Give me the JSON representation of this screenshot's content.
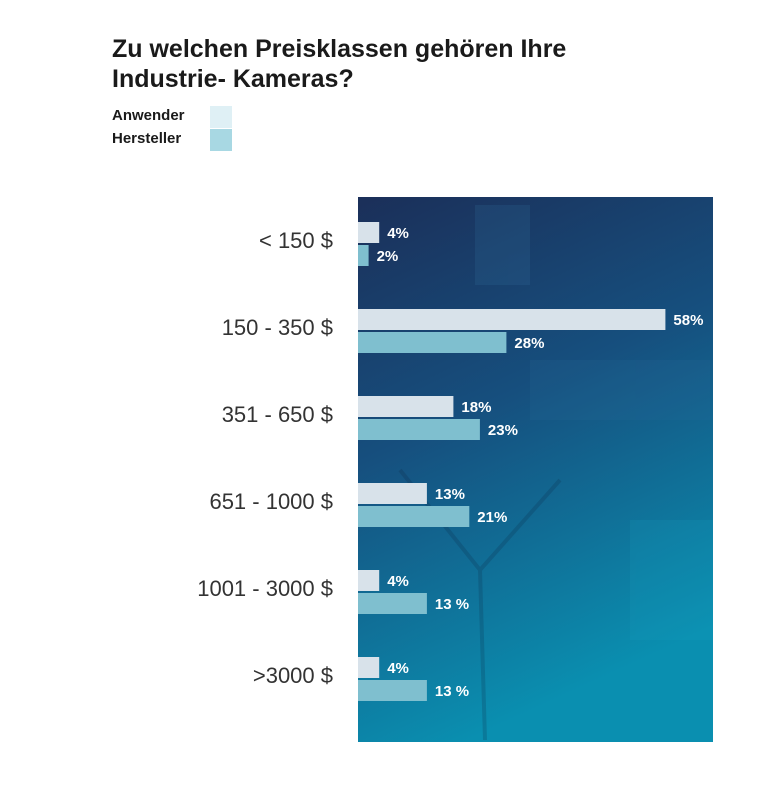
{
  "chart_data": {
    "type": "bar",
    "orientation": "horizontal",
    "title": "Zu welchen Preisklassen gehören Ihre Industrie- Kameras?",
    "title_lines": [
      "Zu welchen Preisklassen gehören Ihre",
      "Industrie- Kameras?"
    ],
    "categories": [
      "< 150 $",
      "150 - 350 $",
      "351 - 650 $",
      "651 - 1000 $",
      "1001 - 3000 $",
      ">3000 $"
    ],
    "series": [
      {
        "name": "Anwender",
        "color": "#d8e2ea",
        "values": [
          4,
          58,
          18,
          13,
          4,
          4
        ],
        "labels": [
          "4%",
          "58%",
          "18%",
          "13%",
          "4%",
          "4%"
        ]
      },
      {
        "name": "Hersteller",
        "color": "#7fbfcf",
        "values": [
          2,
          28,
          23,
          21,
          13,
          13
        ],
        "labels": [
          "2%",
          "28%",
          "23%",
          "21%",
          "13 %",
          "13 %"
        ]
      }
    ],
    "legend_position": "top-left",
    "legend_colors": [
      "#dff0f5",
      "#a8d8e3"
    ],
    "xlim": [
      0,
      67
    ],
    "grid": false,
    "background_colors": [
      "#1b2f59",
      "#0a8fb0"
    ]
  }
}
